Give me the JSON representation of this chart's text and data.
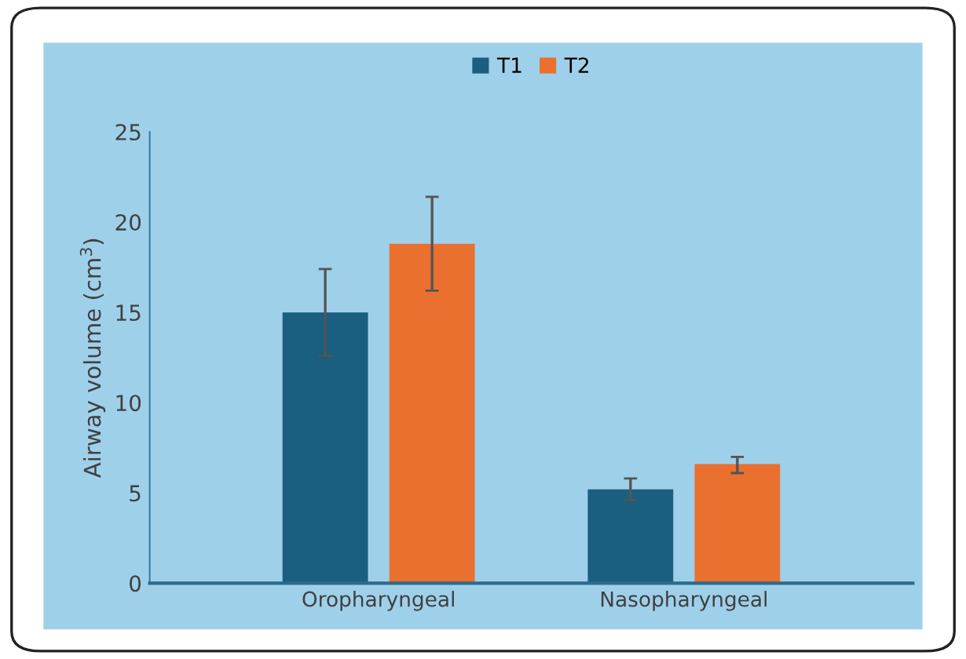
{
  "chart_data": {
    "type": "bar",
    "ylabel": "Airway volume (cm$^{3}$)",
    "categories": [
      "Oropharyngeal",
      "Nasopharyngeal"
    ],
    "series": [
      {
        "name": "T1",
        "color": "#1a5e80",
        "values": [
          15.0,
          5.2
        ],
        "errors": [
          [
            12.6,
            17.4
          ],
          [
            4.6,
            5.8
          ]
        ]
      },
      {
        "name": "T2",
        "color": "#e9702e",
        "values": [
          18.8,
          6.6
        ],
        "errors": [
          [
            16.2,
            21.4
          ],
          [
            6.1,
            7.0
          ]
        ]
      }
    ],
    "ylim": [
      0,
      25
    ],
    "yticks": [
      0,
      5,
      10,
      15,
      20,
      25
    ],
    "grid": false,
    "legend": "top"
  }
}
